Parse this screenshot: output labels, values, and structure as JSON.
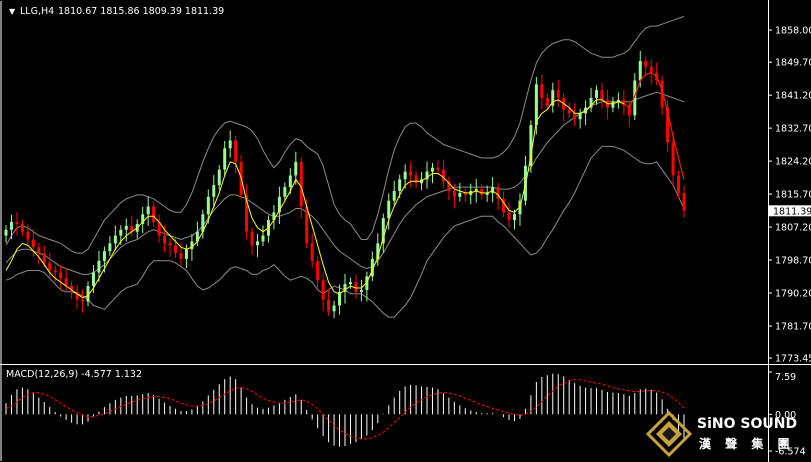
{
  "header": {
    "symbol_label": "LLG,H4",
    "ohlc_text": "1810.67 1815.86 1809.39 1811.39"
  },
  "price_panel": {
    "ticks": [
      "1858.00",
      "1849.70",
      "1841.20",
      "1832.70",
      "1824.20",
      "1815.70",
      "1807.20",
      "1798.70",
      "1790.20",
      "1781.70",
      "1773.45"
    ],
    "tick_values": [
      1858.0,
      1849.7,
      1841.2,
      1832.7,
      1824.2,
      1815.7,
      1807.2,
      1798.7,
      1790.2,
      1781.7,
      1773.45
    ],
    "current_price_label": "1811.39",
    "current_price": 1811.39
  },
  "macd_panel": {
    "label": "MACD(12,26,9) -4.577 1.132",
    "ticks": [
      "7.59",
      "0.00",
      "-6.574"
    ],
    "tick_values": [
      7.59,
      0.0,
      -6.574
    ]
  },
  "colors": {
    "background": "#000000",
    "bull_candle": "#98fb98",
    "bear_candle": "#ff0000",
    "bollinger": "#8c8c8c",
    "moving_average": "#ffff00",
    "macd_histogram": "#ffffff",
    "macd_signal": "#ff0000",
    "logo_gold": "#c9a23a"
  },
  "logo": {
    "name_en": "SiNO SOUND",
    "name_cn": "漢 聲 集 團"
  },
  "chart_data": [
    {
      "type": "candlestick",
      "title": "LLG,H4",
      "ylim": [
        1773.45,
        1858.0
      ],
      "close": [
        1806.5,
        1808.5,
        1808.0,
        1806.0,
        1804.0,
        1802.0,
        1800.5,
        1798.0,
        1796.0,
        1795.5,
        1794.0,
        1792.0,
        1790.5,
        1788.5,
        1788.0,
        1792.0,
        1795.5,
        1798.5,
        1801.0,
        1803.0,
        1805.0,
        1806.5,
        1807.5,
        1806.0,
        1808.0,
        1810.5,
        1812.5,
        1808.5,
        1805.0,
        1803.0,
        1802.5,
        1800.5,
        1799.0,
        1801.5,
        1803.5,
        1806.0,
        1810.5,
        1815.0,
        1818.0,
        1822.0,
        1827.5,
        1829.5,
        1824.0,
        1815.5,
        1806.0,
        1802.5,
        1803.5,
        1805.0,
        1809.0,
        1811.0,
        1815.0,
        1817.5,
        1820.5,
        1824.0,
        1812.5,
        1803.0,
        1798.5,
        1793.5,
        1788.5,
        1785.5,
        1787.0,
        1790.5,
        1792.5,
        1793.0,
        1790.5,
        1791.0,
        1794.5,
        1799.0,
        1803.0,
        1809.5,
        1814.0,
        1816.5,
        1819.5,
        1821.5,
        1820.5,
        1818.5,
        1819.5,
        1821.5,
        1822.5,
        1822.0,
        1819.0,
        1816.5,
        1815.0,
        1816.0,
        1815.5,
        1816.5,
        1817.0,
        1815.5,
        1816.0,
        1817.5,
        1814.5,
        1811.0,
        1809.0,
        1810.5,
        1814.0,
        1823.0,
        1833.5,
        1844.0,
        1840.5,
        1838.5,
        1842.5,
        1840.5,
        1837.5,
        1836.5,
        1835.0,
        1836.5,
        1838.0,
        1840.5,
        1842.5,
        1840.0,
        1838.0,
        1839.5,
        1840.0,
        1838.5,
        1836.0,
        1845.0,
        1850.0,
        1848.5,
        1847.0,
        1845.0,
        1838.0,
        1829.0,
        1820.5,
        1816.0,
        1811.39
      ],
      "bollinger": {
        "upper": [
          1802.5,
          1805.0,
          1807.0,
          1807.5,
          1807.0,
          1806.0,
          1805.0,
          1804.5,
          1804.0,
          1803.5,
          1803.0,
          1802.0,
          1801.0,
          1800.5,
          1800.5,
          1801.5,
          1804.0,
          1806.5,
          1809.0,
          1810.5,
          1812.0,
          1813.5,
          1814.5,
          1815.0,
          1815.5,
          1815.5,
          1815.0,
          1814.5,
          1813.5,
          1812.5,
          1811.5,
          1811.0,
          1811.0,
          1813.0,
          1816.0,
          1820.0,
          1824.0,
          1827.5,
          1830.5,
          1832.5,
          1834.0,
          1834.5,
          1834.0,
          1833.5,
          1833.0,
          1832.0,
          1830.0,
          1827.0,
          1824.5,
          1822.5,
          1824.0,
          1826.5,
          1828.5,
          1830.0,
          1829.5,
          1828.0,
          1827.0,
          1826.0,
          1823.0,
          1818.0,
          1813.0,
          1810.5,
          1809.0,
          1808.0,
          1806.0,
          1804.0,
          1804.0,
          1806.0,
          1810.5,
          1816.0,
          1822.0,
          1827.0,
          1830.5,
          1833.0,
          1834.0,
          1834.0,
          1833.0,
          1831.5,
          1830.5,
          1829.5,
          1828.5,
          1828.0,
          1827.5,
          1827.0,
          1826.5,
          1826.0,
          1825.5,
          1825.0,
          1825.0,
          1825.0,
          1825.5,
          1826.5,
          1828.0,
          1830.5,
          1834.0,
          1839.5,
          1845.0,
          1849.5,
          1852.0,
          1853.5,
          1854.5,
          1855.0,
          1855.5,
          1855.5,
          1855.0,
          1854.0,
          1853.0,
          1852.0,
          1851.5,
          1851.0,
          1851.0,
          1851.0,
          1851.5,
          1852.0,
          1853.0,
          1855.0,
          1857.0,
          1858.5,
          1859.0,
          1859.0,
          1859.5,
          1860.0,
          1860.5,
          1861.0,
          1861.5
        ],
        "middle": [
          1798.0,
          1799.5,
          1801.0,
          1801.5,
          1801.5,
          1801.0,
          1800.5,
          1800.0,
          1799.0,
          1798.0,
          1797.0,
          1796.5,
          1796.0,
          1795.5,
          1795.0,
          1795.0,
          1795.5,
          1796.5,
          1797.5,
          1799.0,
          1800.5,
          1802.0,
          1803.0,
          1803.5,
          1804.0,
          1805.0,
          1806.0,
          1806.5,
          1806.0,
          1805.5,
          1805.0,
          1804.5,
          1804.0,
          1804.5,
          1805.0,
          1806.0,
          1807.5,
          1809.5,
          1811.5,
          1813.0,
          1814.5,
          1815.5,
          1815.5,
          1815.0,
          1814.5,
          1813.5,
          1812.5,
          1811.5,
          1810.5,
          1810.0,
          1810.0,
          1810.5,
          1811.0,
          1812.0,
          1812.0,
          1811.0,
          1810.0,
          1808.5,
          1806.5,
          1804.5,
          1802.5,
          1801.0,
          1800.0,
          1799.0,
          1798.0,
          1797.0,
          1796.5,
          1797.0,
          1798.5,
          1800.5,
          1803.0,
          1805.5,
          1808.0,
          1810.0,
          1811.5,
          1813.0,
          1814.0,
          1815.0,
          1815.5,
          1816.0,
          1816.5,
          1817.0,
          1817.5,
          1817.5,
          1817.5,
          1817.5,
          1817.5,
          1817.5,
          1817.5,
          1817.5,
          1817.0,
          1817.0,
          1817.0,
          1817.5,
          1818.5,
          1820.5,
          1822.5,
          1825.0,
          1827.0,
          1829.0,
          1830.5,
          1832.0,
          1833.5,
          1834.5,
          1835.5,
          1836.5,
          1837.5,
          1838.5,
          1839.0,
          1839.5,
          1839.5,
          1839.5,
          1839.5,
          1839.5,
          1839.5,
          1840.0,
          1840.5,
          1841.0,
          1841.5,
          1842.0,
          1841.5,
          1841.0,
          1840.5,
          1840.0,
          1839.5
        ],
        "lower": [
          1793.5,
          1794.0,
          1795.0,
          1795.5,
          1796.0,
          1796.0,
          1796.0,
          1795.5,
          1794.0,
          1792.5,
          1791.0,
          1790.5,
          1790.5,
          1790.0,
          1789.5,
          1788.5,
          1787.0,
          1786.5,
          1786.0,
          1787.5,
          1789.0,
          1790.5,
          1791.5,
          1792.0,
          1792.5,
          1794.5,
          1797.0,
          1798.5,
          1798.5,
          1798.5,
          1798.5,
          1798.0,
          1797.0,
          1796.0,
          1794.0,
          1792.0,
          1791.0,
          1791.5,
          1792.5,
          1793.5,
          1795.0,
          1796.5,
          1797.0,
          1796.5,
          1796.0,
          1795.0,
          1795.0,
          1796.0,
          1796.5,
          1797.5,
          1796.0,
          1794.5,
          1793.5,
          1794.0,
          1794.5,
          1794.0,
          1793.0,
          1791.0,
          1790.0,
          1791.0,
          1792.0,
          1791.5,
          1791.0,
          1790.0,
          1790.0,
          1790.0,
          1789.0,
          1788.0,
          1786.5,
          1785.0,
          1784.0,
          1784.0,
          1785.5,
          1787.0,
          1789.0,
          1792.0,
          1795.0,
          1798.5,
          1800.5,
          1802.5,
          1804.5,
          1806.0,
          1807.5,
          1808.0,
          1808.5,
          1809.0,
          1809.5,
          1810.0,
          1810.0,
          1810.0,
          1808.5,
          1807.5,
          1806.0,
          1804.5,
          1803.0,
          1801.5,
          1800.0,
          1800.5,
          1802.0,
          1804.5,
          1806.5,
          1809.0,
          1811.5,
          1813.5,
          1816.0,
          1819.0,
          1822.0,
          1825.0,
          1826.5,
          1828.0,
          1828.0,
          1828.0,
          1827.5,
          1827.0,
          1826.0,
          1825.0,
          1824.0,
          1823.5,
          1823.5,
          1824.0,
          1822.0,
          1820.0,
          1818.0,
          1815.0,
          1812.0
        ]
      },
      "moving_average": [
        1796.0,
        1798.5,
        1801.5,
        1803.0,
        1802.5,
        1801.0,
        1799.5,
        1797.5,
        1795.5,
        1794.0,
        1793.0,
        1792.0,
        1791.0,
        1790.0,
        1789.0,
        1789.5,
        1791.5,
        1794.0,
        1796.5,
        1799.0,
        1801.5,
        1803.5,
        1805.0,
        1806.0,
        1807.0,
        1808.5,
        1810.0,
        1810.0,
        1808.5,
        1806.5,
        1805.0,
        1803.5,
        1802.0,
        1801.5,
        1802.0,
        1803.5,
        1806.0,
        1809.0,
        1812.5,
        1816.0,
        1820.5,
        1824.0,
        1823.5,
        1820.0,
        1814.0,
        1809.5,
        1807.0,
        1806.0,
        1807.0,
        1809.0,
        1811.5,
        1814.0,
        1816.5,
        1819.5,
        1817.5,
        1812.5,
        1807.5,
        1802.5,
        1797.5,
        1793.0,
        1790.5,
        1790.0,
        1791.0,
        1792.0,
        1791.5,
        1791.5,
        1793.0,
        1796.0,
        1799.5,
        1804.5,
        1809.0,
        1812.5,
        1815.5,
        1818.0,
        1819.0,
        1819.0,
        1819.0,
        1820.0,
        1821.0,
        1821.0,
        1820.0,
        1818.5,
        1817.0,
        1816.5,
        1816.0,
        1816.0,
        1816.5,
        1816.0,
        1816.0,
        1816.5,
        1815.5,
        1813.5,
        1811.5,
        1811.0,
        1812.5,
        1818.0,
        1825.5,
        1834.5,
        1836.5,
        1837.5,
        1839.5,
        1840.0,
        1839.0,
        1838.0,
        1836.5,
        1836.5,
        1837.0,
        1838.5,
        1840.0,
        1840.0,
        1839.0,
        1839.0,
        1839.5,
        1839.0,
        1838.0,
        1841.0,
        1845.0,
        1846.5,
        1847.0,
        1846.0,
        1842.5,
        1837.0,
        1830.5,
        1825.0,
        1819.5
      ]
    },
    {
      "type": "bar",
      "title": "MACD(12,26,9) -4.577 1.132",
      "ylim": [
        -6.574,
        7.59
      ],
      "histogram": [
        2.0,
        3.5,
        4.5,
        4.8,
        4.5,
        3.8,
        3.0,
        2.2,
        1.3,
        0.4,
        -0.4,
        -1.0,
        -1.5,
        -1.8,
        -1.8,
        -1.3,
        -0.4,
        0.5,
        1.3,
        2.0,
        2.6,
        3.0,
        3.3,
        3.3,
        3.4,
        3.6,
        3.8,
        3.5,
        2.8,
        2.1,
        1.5,
        1.0,
        0.6,
        0.6,
        0.9,
        1.4,
        2.3,
        3.4,
        4.4,
        5.4,
        6.3,
        6.8,
        6.3,
        4.8,
        3.0,
        1.8,
        1.2,
        1.0,
        1.2,
        1.6,
        2.1,
        2.6,
        3.1,
        3.6,
        2.6,
        0.8,
        -0.9,
        -2.5,
        -3.9,
        -5.0,
        -5.6,
        -5.8,
        -5.7,
        -5.3,
        -5.0,
        -4.5,
        -3.8,
        -2.8,
        -1.6,
        0.1,
        1.6,
        3.0,
        4.2,
        5.0,
        5.3,
        5.2,
        5.0,
        4.9,
        4.8,
        4.5,
        3.8,
        3.0,
        2.2,
        1.6,
        1.1,
        0.7,
        0.4,
        0.2,
        0.2,
        0.2,
        0.0,
        -0.5,
        -1.0,
        -1.2,
        -0.8,
        1.0,
        3.4,
        5.8,
        6.7,
        7.0,
        7.3,
        7.2,
        6.8,
        6.2,
        5.6,
        5.1,
        4.8,
        4.7,
        4.7,
        4.4,
        4.0,
        3.9,
        3.8,
        3.6,
        3.3,
        3.8,
        4.5,
        4.6,
        4.4,
        3.9,
        2.7,
        1.0,
        -1.0,
        -2.9,
        -4.577
      ],
      "signal": [
        1.0,
        1.5,
        2.2,
        3.0,
        3.6,
        3.9,
        3.9,
        3.6,
        3.2,
        2.6,
        2.0,
        1.4,
        0.8,
        0.3,
        -0.1,
        -0.4,
        -0.4,
        -0.2,
        0.1,
        0.5,
        1.0,
        1.4,
        1.8,
        2.2,
        2.5,
        2.8,
        3.0,
        3.2,
        3.2,
        3.0,
        2.8,
        2.4,
        2.0,
        1.7,
        1.5,
        1.5,
        1.6,
        1.9,
        2.4,
        3.0,
        3.6,
        4.2,
        4.7,
        4.8,
        4.6,
        4.1,
        3.5,
        2.9,
        2.5,
        2.2,
        2.0,
        2.0,
        2.2,
        2.4,
        2.6,
        2.4,
        1.8,
        1.0,
        0.0,
        -1.0,
        -2.0,
        -2.8,
        -3.4,
        -3.9,
        -4.2,
        -4.4,
        -4.4,
        -4.2,
        -3.8,
        -3.2,
        -2.4,
        -1.5,
        -0.6,
        0.4,
        1.3,
        2.0,
        2.6,
        3.1,
        3.5,
        3.8,
        3.9,
        3.8,
        3.6,
        3.3,
        2.9,
        2.5,
        2.1,
        1.7,
        1.4,
        1.1,
        0.8,
        0.5,
        0.2,
        0.0,
        -0.2,
        0.0,
        0.5,
        1.3,
        2.3,
        3.3,
        4.2,
        5.0,
        5.6,
        6.0,
        6.2,
        6.2,
        6.0,
        5.8,
        5.6,
        5.4,
        5.1,
        4.8,
        4.6,
        4.4,
        4.2,
        4.1,
        4.1,
        4.2,
        4.3,
        4.2,
        4.0,
        3.6,
        3.0,
        2.1,
        1.132
      ]
    }
  ]
}
